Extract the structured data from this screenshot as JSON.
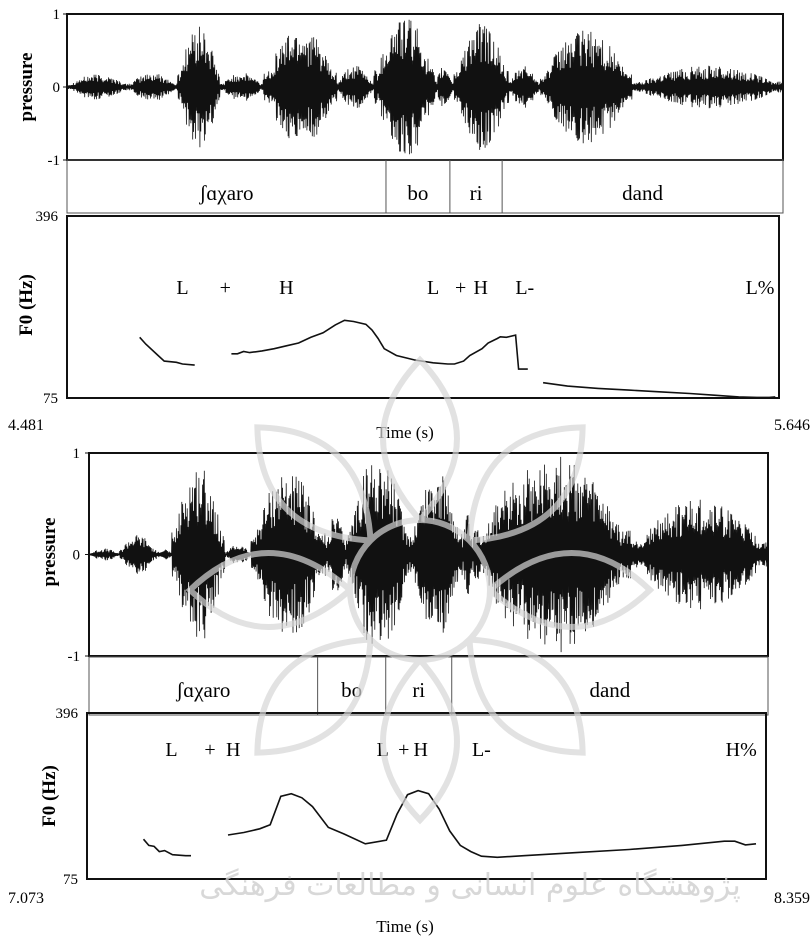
{
  "watermark": {
    "caption": "پژوهشگاه علوم انسانی و مطالعات فرهنگی",
    "color": "#cfcfcf"
  },
  "chart_data": [
    {
      "type": "line",
      "title": "",
      "xlabel": "Time (s)",
      "xlim": [
        4.481,
        5.646
      ],
      "x_tick_labels": [
        "4.481",
        "5.646"
      ],
      "waveform": {
        "ylabel": "pressure",
        "ylim": [
          -1,
          1
        ],
        "y_tick_labels": [
          "1",
          "0",
          "-1"
        ],
        "bursts": [
          {
            "start": 4.481,
            "end": 4.58,
            "amp": 0.18
          },
          {
            "start": 4.58,
            "end": 4.66,
            "amp": 0.2
          },
          {
            "start": 4.66,
            "end": 4.73,
            "amp": 0.85
          },
          {
            "start": 4.73,
            "end": 4.8,
            "amp": 0.2
          },
          {
            "start": 4.8,
            "end": 4.92,
            "amp": 0.85
          },
          {
            "start": 4.92,
            "end": 4.98,
            "amp": 0.3
          },
          {
            "start": 4.98,
            "end": 5.08,
            "amp": 1.0
          },
          {
            "start": 5.08,
            "end": 5.11,
            "amp": 0.3
          },
          {
            "start": 5.11,
            "end": 5.2,
            "amp": 0.9
          },
          {
            "start": 5.2,
            "end": 5.25,
            "amp": 0.3
          },
          {
            "start": 5.25,
            "end": 5.4,
            "amp": 0.8
          },
          {
            "start": 5.4,
            "end": 5.646,
            "amp": 0.3
          }
        ]
      },
      "segments": [
        {
          "label": "ʃɑχaro",
          "start": 4.481,
          "end": 5.0
        },
        {
          "label": "bo",
          "start": 5.0,
          "end": 5.104
        },
        {
          "label": "ri",
          "start": 5.104,
          "end": 5.189
        },
        {
          "label": "dand",
          "start": 5.189,
          "end": 5.646
        }
      ],
      "pitch": {
        "ylabel": "F0 (Hz)",
        "ylim": [
          75,
          396
        ],
        "y_tick_labels": [
          "396",
          "75"
        ],
        "series": [
          {
            "x": [
              4.6,
              4.61,
              4.63,
              4.64,
              4.66,
              4.67,
              4.69
            ],
            "y": [
              182,
              170,
              150,
              140,
              138,
              135,
              133
            ]
          },
          {
            "x": [
              4.75,
              4.76,
              4.77,
              4.78,
              4.8,
              4.82,
              4.84,
              4.86,
              4.88,
              4.9,
              4.92,
              4.935,
              4.95,
              4.97,
              4.98,
              4.99,
              5.0,
              5.02,
              5.05,
              5.08,
              5.104,
              5.115,
              5.13,
              5.14,
              5.16,
              5.17,
              5.185,
              5.19,
              5.2,
              5.215,
              5.22,
              5.235
            ],
            "y": [
              153,
              153,
              157,
              155,
              158,
              162,
              167,
              172,
              182,
              190,
              204,
              212,
              210,
              205,
              195,
              180,
              162,
              150,
              142,
              137,
              135,
              135,
              140,
              150,
              162,
              172,
              180,
              183,
              182,
              186,
              126,
              126
            ]
          },
          {
            "x": [
              5.26,
              5.3,
              5.35,
              5.4,
              5.45,
              5.5,
              5.54,
              5.58,
              5.61,
              5.63,
              5.64
            ],
            "y": [
              102,
              96,
              92,
              89,
              86,
              83,
              80,
              77,
              76,
              76,
              77
            ]
          }
        ]
      },
      "annotations": [
        {
          "text": "L",
          "x": 4.67
        },
        {
          "text": "+",
          "x": 4.74
        },
        {
          "text": "H",
          "x": 4.84
        },
        {
          "text": "L",
          "x": 5.08
        },
        {
          "text": "+",
          "x": 5.125
        },
        {
          "text": "H",
          "x": 5.158
        },
        {
          "text": "L-",
          "x": 5.23
        },
        {
          "text": "L%",
          "x": 5.615
        }
      ]
    },
    {
      "type": "line",
      "title": "",
      "xlabel": "Time (s)",
      "xlim": [
        7.073,
        8.359
      ],
      "x_tick_labels": [
        "7.073",
        "8.359"
      ],
      "waveform": {
        "ylabel": "pressure",
        "ylim": [
          -1,
          1
        ],
        "y_tick_labels": [
          "1",
          "0",
          "-1"
        ],
        "bursts": [
          {
            "start": 7.073,
            "end": 7.13,
            "amp": 0.06
          },
          {
            "start": 7.13,
            "end": 7.2,
            "amp": 0.2
          },
          {
            "start": 7.2,
            "end": 7.23,
            "amp": 0.06
          },
          {
            "start": 7.23,
            "end": 7.33,
            "amp": 0.9
          },
          {
            "start": 7.33,
            "end": 7.38,
            "amp": 0.1
          },
          {
            "start": 7.38,
            "end": 7.52,
            "amp": 0.85
          },
          {
            "start": 7.52,
            "end": 7.56,
            "amp": 0.4
          },
          {
            "start": 7.56,
            "end": 7.68,
            "amp": 1.0
          },
          {
            "start": 7.68,
            "end": 7.78,
            "amp": 0.85
          },
          {
            "start": 7.78,
            "end": 7.8,
            "amp": 0.4
          },
          {
            "start": 7.8,
            "end": 8.1,
            "amp": 1.0
          },
          {
            "start": 8.1,
            "end": 8.359,
            "amp": 0.55
          }
        ]
      },
      "segments": [
        {
          "label": "ʃɑχaro",
          "start": 7.073,
          "end": 7.506
        },
        {
          "label": "bo",
          "start": 7.506,
          "end": 7.635
        },
        {
          "label": "ri",
          "start": 7.635,
          "end": 7.76
        },
        {
          "label": "dand",
          "start": 7.76,
          "end": 8.359
        }
      ],
      "pitch": {
        "ylabel": "F0 (Hz)",
        "ylim": [
          75,
          396
        ],
        "y_tick_labels": [
          "396",
          "75"
        ],
        "series": [
          {
            "x": [
              7.18,
              7.19,
              7.2,
              7.21,
              7.22,
              7.235,
              7.26,
              7.27
            ],
            "y": [
              152,
              140,
              138,
              128,
              130,
              122,
              120,
              120
            ]
          },
          {
            "x": [
              7.34,
              7.37,
              7.4,
              7.42,
              7.44,
              7.46,
              7.48,
              7.5,
              7.53,
              7.56,
              7.6,
              7.64,
              7.66,
              7.68,
              7.7,
              7.72,
              7.74,
              7.76,
              7.78,
              7.8,
              7.82,
              7.85,
              7.9,
              8.0,
              8.1,
              8.2,
              8.28,
              8.3,
              8.32,
              8.34
            ],
            "y": [
              160,
              165,
              172,
              180,
              235,
              240,
              232,
              215,
              175,
              162,
              143,
              150,
              200,
              238,
              246,
              240,
              210,
              168,
              140,
              128,
              119,
              117,
              120,
              126,
              132,
              140,
              148,
              148,
              141,
              143
            ]
          }
        ]
      },
      "annotations": [
        {
          "text": "L",
          "x": 7.233
        },
        {
          "text": "+",
          "x": 7.306
        },
        {
          "text": "H",
          "x": 7.35
        },
        {
          "text": "L",
          "x": 7.633
        },
        {
          "text": "+",
          "x": 7.673
        },
        {
          "text": "H",
          "x": 7.705
        },
        {
          "text": "L-",
          "x": 7.82
        },
        {
          "text": "H%",
          "x": 8.312
        }
      ]
    }
  ]
}
